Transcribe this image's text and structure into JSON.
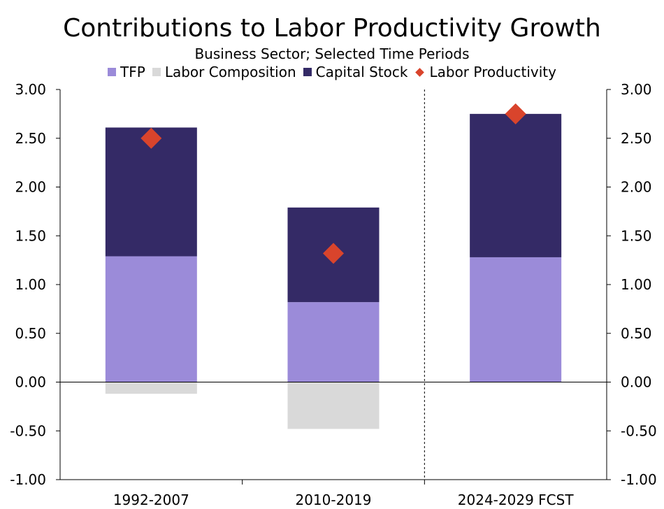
{
  "colors": {
    "tfp": "#9b8bd9",
    "labor_composition": "#d9d9d9",
    "capital_stock": "#342a66",
    "labor_productivity": "#d9442c"
  },
  "chart_data": {
    "type": "bar",
    "stacked": true,
    "title": "Contributions to Labor Productivity Growth",
    "subtitle": "Business Sector; Selected Time Periods",
    "categories": [
      "1992-2007",
      "2010-2019",
      "2024-2029 FCST"
    ],
    "series": [
      {
        "name": "TFP",
        "kind": "bar",
        "color": "#9b8bd9",
        "values": [
          1.29,
          0.82,
          1.28
        ]
      },
      {
        "name": "Labor Composition",
        "kind": "bar",
        "color": "#d9d9d9",
        "values": [
          -0.12,
          -0.48,
          0.0
        ]
      },
      {
        "name": "Capital Stock",
        "kind": "bar",
        "color": "#342a66",
        "values": [
          1.32,
          0.97,
          1.47
        ]
      },
      {
        "name": "Labor Productivity",
        "kind": "marker",
        "marker": "diamond",
        "color": "#d9442c",
        "values": [
          2.5,
          1.32,
          2.75
        ]
      }
    ],
    "ylim": [
      -1.0,
      3.0
    ],
    "yticks": [
      "3.00",
      "2.50",
      "2.00",
      "1.50",
      "1.00",
      "0.50",
      "0.00",
      "-0.50",
      "-1.00"
    ],
    "ytick_values": [
      3.0,
      2.5,
      2.0,
      1.5,
      1.0,
      0.5,
      0.0,
      -0.5,
      -1.0
    ],
    "y_axes": "left and right",
    "forecast_divider_after_category": 1,
    "legend_position": "top",
    "grid": false
  }
}
